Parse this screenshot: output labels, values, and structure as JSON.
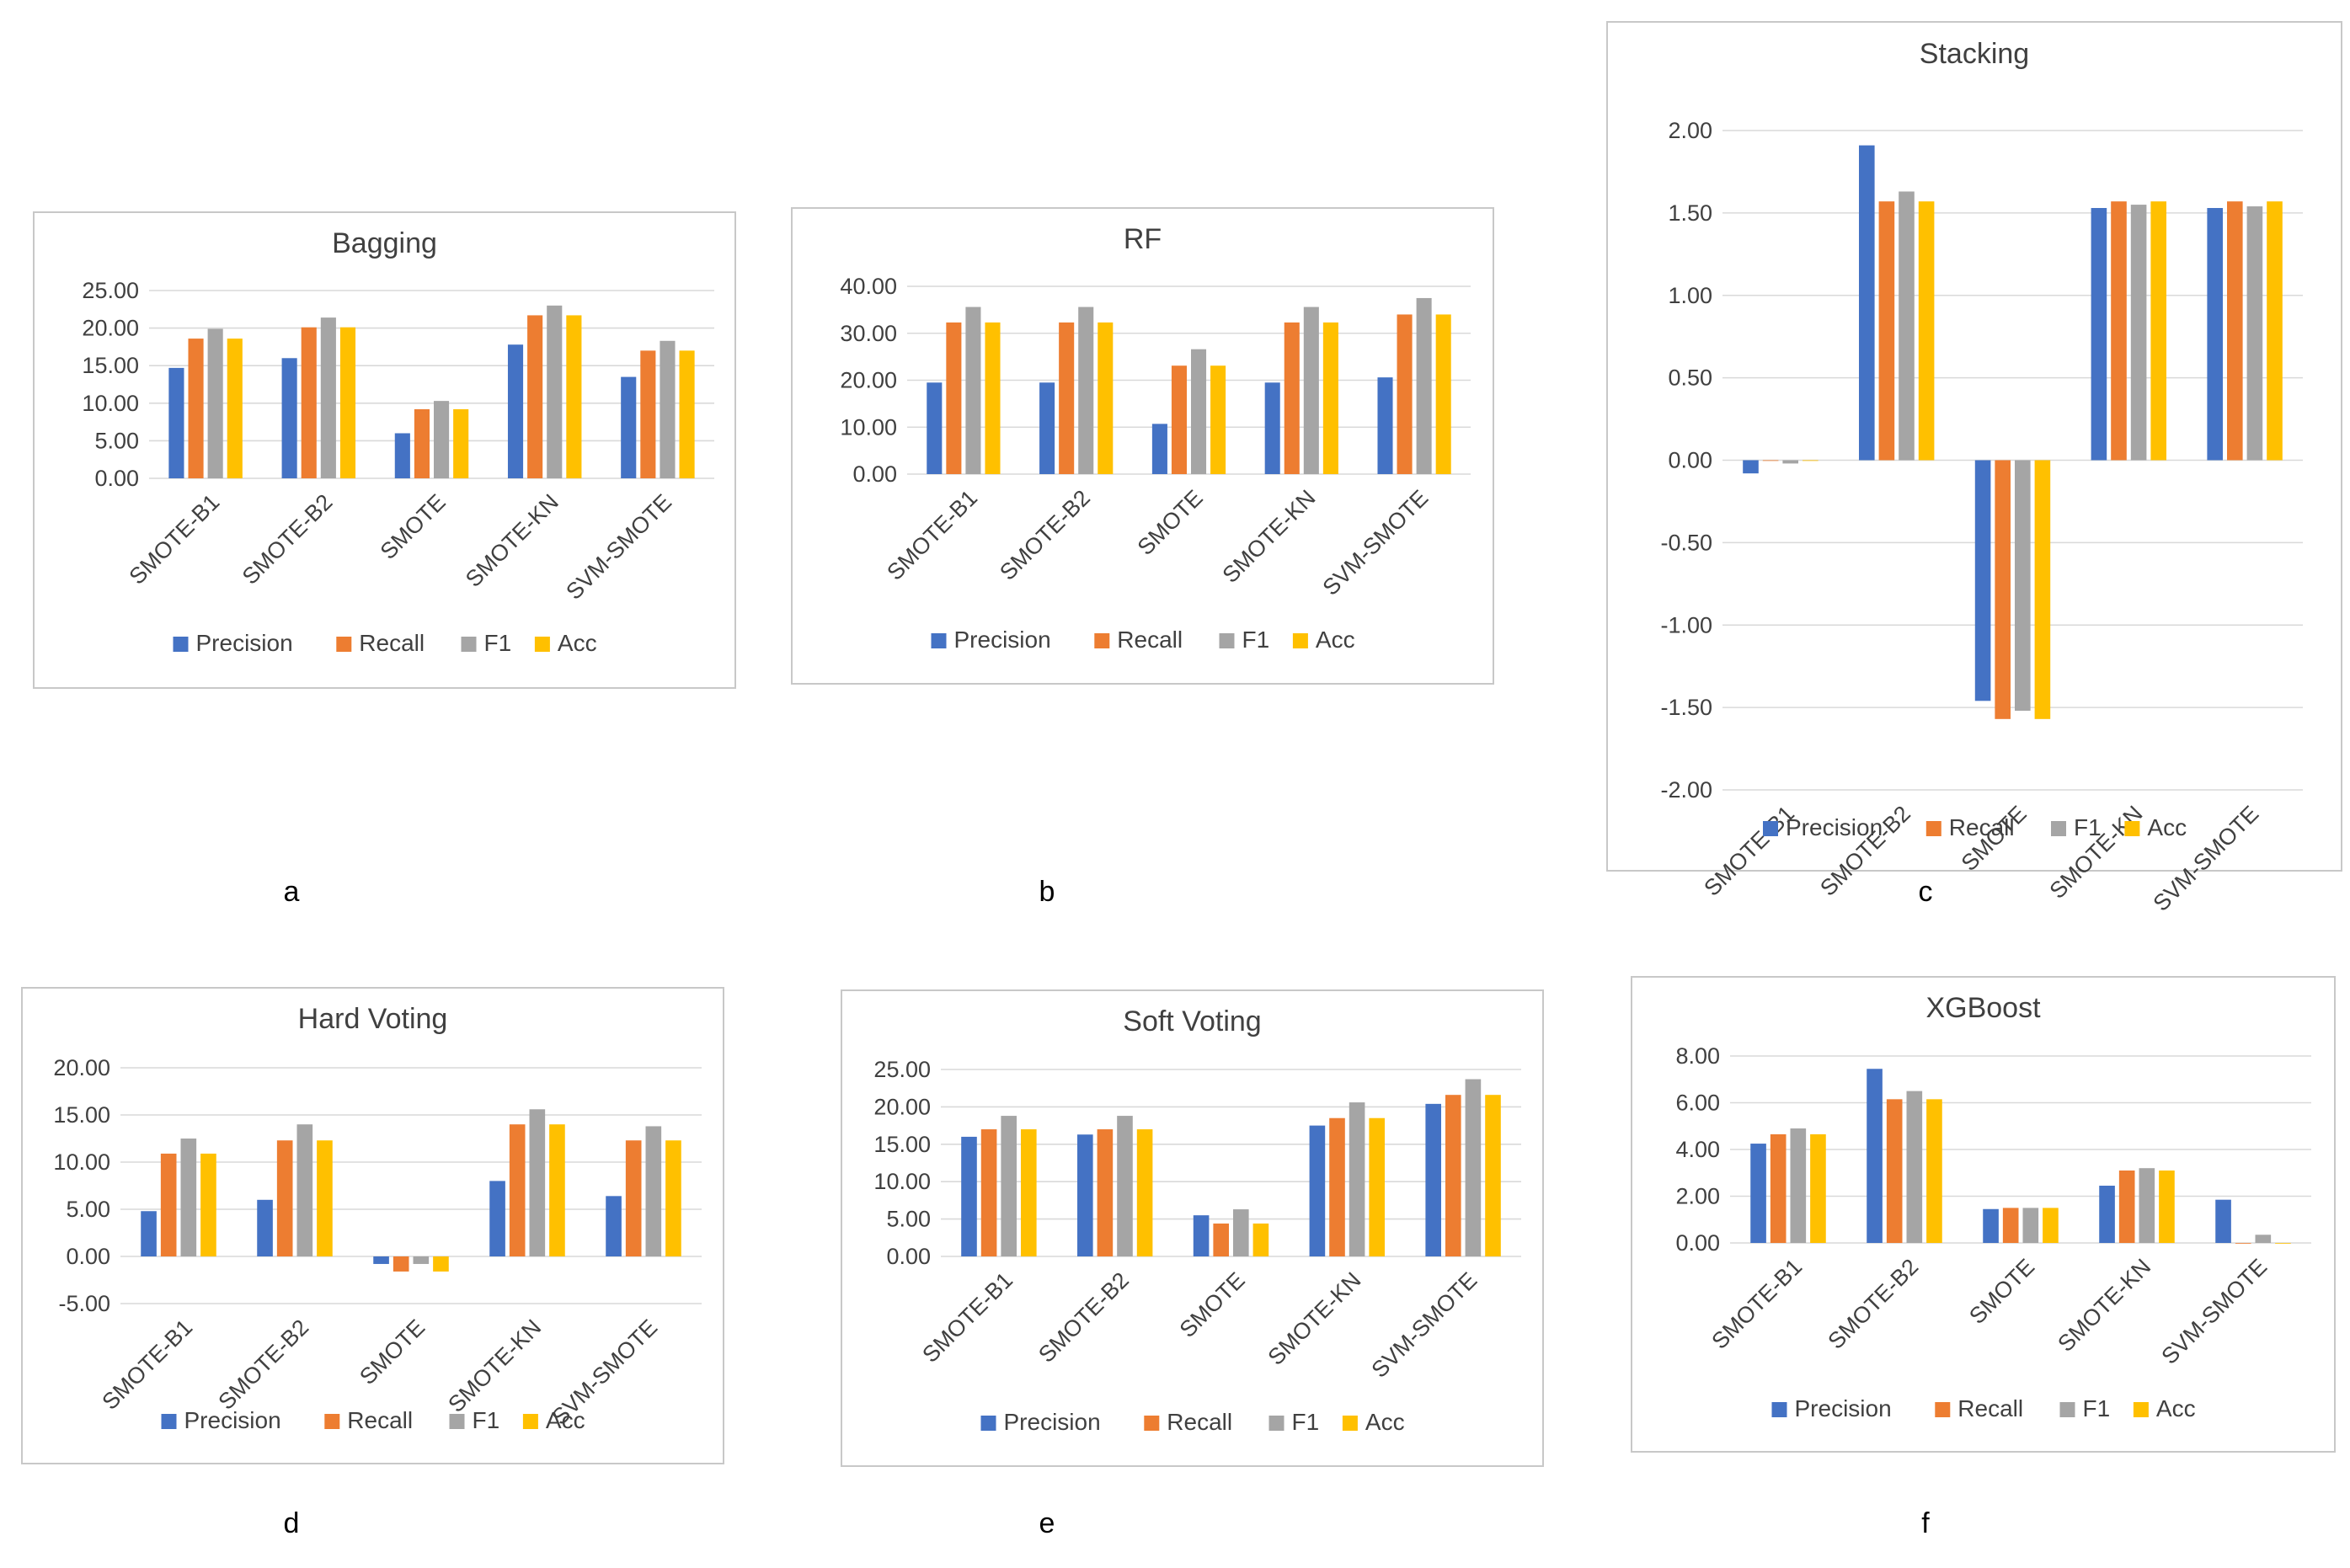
{
  "chart_data": [
    {
      "type": "bar",
      "title": "Bagging",
      "panel_label": "a",
      "categories": [
        "SMOTE-B1",
        "SMOTE-B2",
        "SMOTE",
        "SMOTE-KN",
        "SVM-SMOTE"
      ],
      "series": [
        {
          "name": "Precision",
          "values": [
            14.7,
            16.0,
            6.0,
            17.8,
            13.5
          ]
        },
        {
          "name": "Recall",
          "values": [
            18.6,
            20.1,
            9.2,
            21.7,
            17.0
          ]
        },
        {
          "name": "F1",
          "values": [
            19.9,
            21.4,
            10.3,
            23.0,
            18.3
          ]
        },
        {
          "name": "Acc",
          "values": [
            18.6,
            20.1,
            9.2,
            21.7,
            17.0
          ]
        }
      ],
      "ylim": [
        0,
        25
      ],
      "yticks": [
        0,
        5,
        10,
        15,
        20,
        25
      ],
      "ytick_labels": [
        "0.00",
        "5.00",
        "10.00",
        "15.00",
        "20.00",
        "25.00"
      ],
      "xlabel": "",
      "ylabel": "",
      "grid": true,
      "legend": "bottom"
    },
    {
      "type": "bar",
      "title": "RF",
      "panel_label": "b",
      "categories": [
        "SMOTE-B1",
        "SMOTE-B2",
        "SMOTE",
        "SMOTE-KN",
        "SVM-SMOTE"
      ],
      "series": [
        {
          "name": "Precision",
          "values": [
            19.5,
            19.5,
            10.7,
            19.5,
            20.6
          ]
        },
        {
          "name": "Recall",
          "values": [
            32.3,
            32.3,
            23.1,
            32.3,
            34.0
          ]
        },
        {
          "name": "F1",
          "values": [
            35.6,
            35.6,
            26.6,
            35.6,
            37.5
          ]
        },
        {
          "name": "Acc",
          "values": [
            32.3,
            32.3,
            23.1,
            32.3,
            34.0
          ]
        }
      ],
      "ylim": [
        0,
        40
      ],
      "yticks": [
        0,
        10,
        20,
        30,
        40
      ],
      "ytick_labels": [
        "0.00",
        "10.00",
        "20.00",
        "30.00",
        "40.00"
      ],
      "xlabel": "",
      "ylabel": "",
      "grid": true,
      "legend": "bottom"
    },
    {
      "type": "bar",
      "title": "Stacking",
      "panel_label": "c",
      "categories": [
        "SMOTE-B1",
        "SMOTE-B2",
        "SMOTE",
        "SMOTE-KN",
        "SVM-SMOTE"
      ],
      "series": [
        {
          "name": "Precision",
          "values": [
            -0.08,
            1.91,
            -1.46,
            1.53,
            1.53
          ]
        },
        {
          "name": "Recall",
          "values": [
            0.0,
            1.57,
            -1.57,
            1.57,
            1.57
          ]
        },
        {
          "name": "F1",
          "values": [
            -0.02,
            1.63,
            -1.52,
            1.55,
            1.54
          ]
        },
        {
          "name": "Acc",
          "values": [
            0.0,
            1.57,
            -1.57,
            1.57,
            1.57
          ]
        }
      ],
      "ylim": [
        -2,
        2
      ],
      "yticks": [
        -2,
        -1.5,
        -1,
        -0.5,
        0,
        0.5,
        1,
        1.5,
        2
      ],
      "ytick_labels": [
        "-2.00",
        "-1.50",
        "-1.00",
        "-0.50",
        "0.00",
        "0.50",
        "1.00",
        "1.50",
        "2.00"
      ],
      "xlabel": "",
      "ylabel": "",
      "grid": true,
      "legend": "bottom"
    },
    {
      "type": "bar",
      "title": "Hard Voting",
      "panel_label": "d",
      "categories": [
        "SMOTE-B1",
        "SMOTE-B2",
        "SMOTE",
        "SMOTE-KN",
        "SVM-SMOTE"
      ],
      "series": [
        {
          "name": "Precision",
          "values": [
            4.8,
            6.0,
            -0.8,
            8.0,
            6.4
          ]
        },
        {
          "name": "Recall",
          "values": [
            10.9,
            12.3,
            -1.6,
            14.0,
            12.3
          ]
        },
        {
          "name": "F1",
          "values": [
            12.5,
            14.0,
            -0.8,
            15.6,
            13.8
          ]
        },
        {
          "name": "Acc",
          "values": [
            10.9,
            12.3,
            -1.6,
            14.0,
            12.3
          ]
        }
      ],
      "ylim": [
        -5,
        20
      ],
      "yticks": [
        -5,
        0,
        5,
        10,
        15,
        20
      ],
      "ytick_labels": [
        "-5.00",
        "0.00",
        "5.00",
        "10.00",
        "15.00",
        "20.00"
      ],
      "xlabel": "",
      "ylabel": "",
      "grid": true,
      "legend": "bottom"
    },
    {
      "type": "bar",
      "title": "Soft Voting",
      "panel_label": "e",
      "categories": [
        "SMOTE-B1",
        "SMOTE-B2",
        "SMOTE",
        "SMOTE-KN",
        "SVM-SMOTE"
      ],
      "series": [
        {
          "name": "Precision",
          "values": [
            16.0,
            16.3,
            5.5,
            17.5,
            20.4
          ]
        },
        {
          "name": "Recall",
          "values": [
            17.0,
            17.0,
            4.4,
            18.5,
            21.6
          ]
        },
        {
          "name": "F1",
          "values": [
            18.8,
            18.8,
            6.3,
            20.6,
            23.7
          ]
        },
        {
          "name": "Acc",
          "values": [
            17.0,
            17.0,
            4.4,
            18.5,
            21.6
          ]
        }
      ],
      "ylim": [
        0,
        25
      ],
      "yticks": [
        0,
        5,
        10,
        15,
        20,
        25
      ],
      "ytick_labels": [
        "0.00",
        "5.00",
        "10.00",
        "15.00",
        "20.00",
        "25.00"
      ],
      "xlabel": "",
      "ylabel": "",
      "grid": true,
      "legend": "bottom"
    },
    {
      "type": "bar",
      "title": "XGBoost",
      "panel_label": "f",
      "categories": [
        "SMOTE-B1",
        "SMOTE-B2",
        "SMOTE",
        "SMOTE-KN",
        "SVM-SMOTE"
      ],
      "series": [
        {
          "name": "Precision",
          "values": [
            4.25,
            7.45,
            1.45,
            2.45,
            1.85
          ]
        },
        {
          "name": "Recall",
          "values": [
            4.65,
            6.15,
            1.5,
            3.1,
            0.0
          ]
        },
        {
          "name": "F1",
          "values": [
            4.9,
            6.5,
            1.5,
            3.2,
            0.35
          ]
        },
        {
          "name": "Acc",
          "values": [
            4.65,
            6.15,
            1.5,
            3.1,
            0.0
          ]
        }
      ],
      "ylim": [
        0,
        8
      ],
      "yticks": [
        0,
        2,
        4,
        6,
        8
      ],
      "ytick_labels": [
        "0.00",
        "2.00",
        "4.00",
        "6.00",
        "8.00"
      ],
      "xlabel": "",
      "ylabel": "",
      "grid": true,
      "legend": "bottom"
    }
  ],
  "series_colors": {
    "Precision": "#4472c4",
    "Recall": "#ed7d31",
    "F1": "#a5a5a5",
    "Acc": "#ffc000"
  }
}
